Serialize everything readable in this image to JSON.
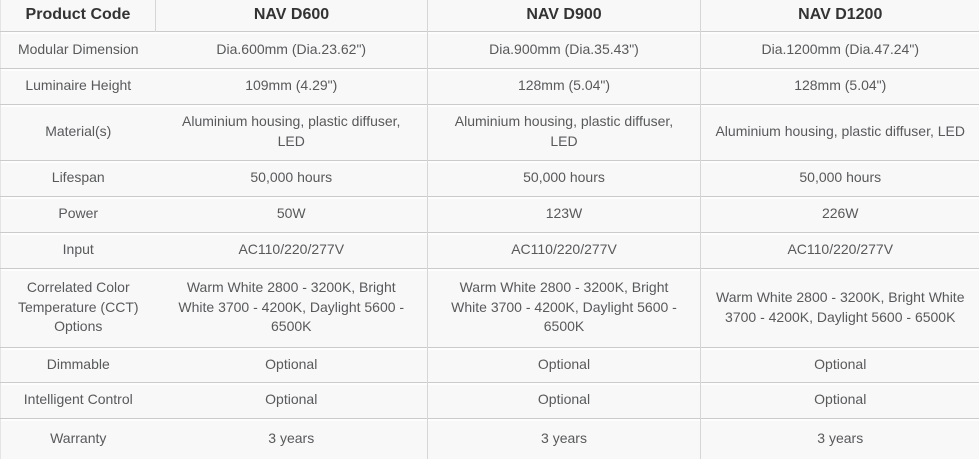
{
  "colors": {
    "cell_background": "#f8f8f8",
    "horizontal_border": "#cbcbcb",
    "vertical_border": "#d6d6d6",
    "header_text": "#333333",
    "body_text": "#58595b"
  },
  "table": {
    "columns": [
      {
        "header": "Product Code"
      },
      {
        "header": "NAV D600"
      },
      {
        "header": "NAV D900"
      },
      {
        "header": "NAV D1200"
      }
    ],
    "rows": [
      {
        "label": "Modular Dimension",
        "values": [
          "Dia.600mm (Dia.23.62\")",
          "Dia.900mm (Dia.35.43\")",
          "Dia.1200mm (Dia.47.24\")"
        ]
      },
      {
        "label": "Luminaire Height",
        "values": [
          "109mm (4.29\")",
          "128mm (5.04\")",
          "128mm (5.04\")"
        ]
      },
      {
        "label": "Material(s)",
        "values": [
          "Aluminium housing, plastic diffuser, LED",
          "Aluminium housing, plastic diffuser, LED",
          "Aluminium housing, plastic diffuser, LED"
        ]
      },
      {
        "label": "Lifespan",
        "values": [
          "50,000 hours",
          "50,000 hours",
          "50,000 hours"
        ]
      },
      {
        "label": "Power",
        "values": [
          "50W",
          "123W",
          "226W"
        ]
      },
      {
        "label": "Input",
        "values": [
          "AC110/220/277V",
          "AC110/220/277V",
          "AC110/220/277V"
        ]
      },
      {
        "label": "Correlated Color Temperature (CCT) Options",
        "values": [
          "Warm White 2800 - 3200K, Bright White 3700 - 4200K, Daylight 5600 - 6500K",
          "Warm White 2800 - 3200K, Bright White 3700 - 4200K, Daylight 5600 - 6500K",
          "Warm White 2800 - 3200K, Bright White 3700 - 4200K, Daylight 5600 - 6500K"
        ]
      },
      {
        "label": "Dimmable",
        "values": [
          "Optional",
          "Optional",
          "Optional"
        ]
      },
      {
        "label": "Intelligent Control",
        "values": [
          "Optional",
          "Optional",
          "Optional"
        ]
      },
      {
        "label": "Warranty",
        "values": [
          "3 years",
          "3 years",
          "3 years"
        ]
      }
    ]
  }
}
